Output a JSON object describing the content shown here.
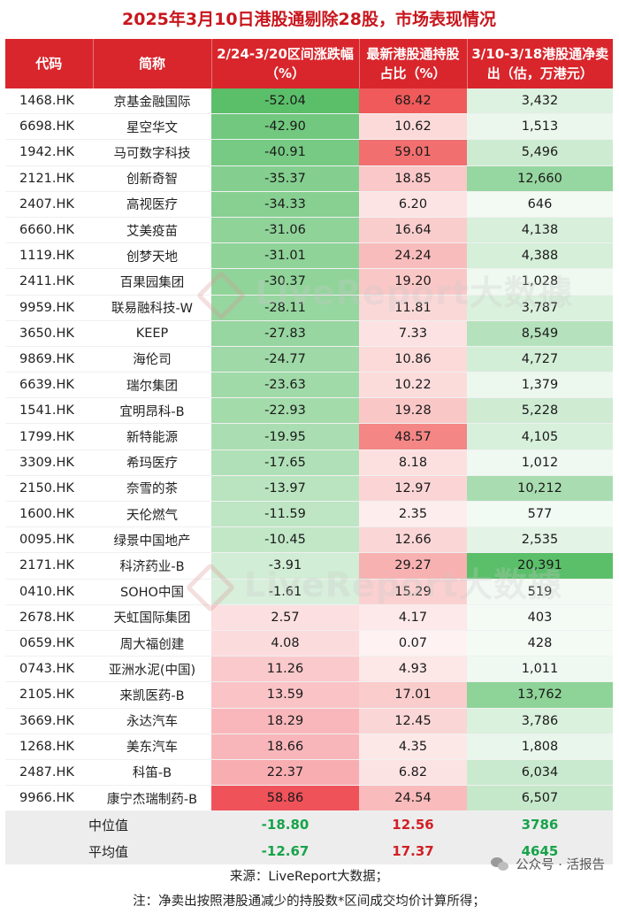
{
  "title": "2025年3月10日港股通剔除28股，市场表现情况",
  "headers": {
    "code": "代码",
    "name": "简称",
    "change": "2/24-3/20区间涨跌幅（%）",
    "holding": "最新港股通持股占比（%）",
    "net_sell": "3/10-3/18港股通净卖出（估，万港元）"
  },
  "rows": [
    {
      "code": "1468.HK",
      "name": "京基金融国际",
      "change": "-52.04",
      "holding": "68.42",
      "net_sell": "3,432"
    },
    {
      "code": "6698.HK",
      "name": "星空华文",
      "change": "-42.90",
      "holding": "10.62",
      "net_sell": "1,513"
    },
    {
      "code": "1942.HK",
      "name": "马可数字科技",
      "change": "-40.91",
      "holding": "59.01",
      "net_sell": "5,496"
    },
    {
      "code": "2121.HK",
      "name": "创新奇智",
      "change": "-35.37",
      "holding": "18.85",
      "net_sell": "12,660"
    },
    {
      "code": "2407.HK",
      "name": "高视医疗",
      "change": "-34.33",
      "holding": "6.20",
      "net_sell": "646"
    },
    {
      "code": "6660.HK",
      "name": "艾美疫苗",
      "change": "-31.06",
      "holding": "16.64",
      "net_sell": "4,138"
    },
    {
      "code": "1119.HK",
      "name": "创梦天地",
      "change": "-31.01",
      "holding": "24.24",
      "net_sell": "4,388"
    },
    {
      "code": "2411.HK",
      "name": "百果园集团",
      "change": "-30.37",
      "holding": "19.20",
      "net_sell": "1,028"
    },
    {
      "code": "9959.HK",
      "name": "联易融科技-W",
      "change": "-28.11",
      "holding": "11.81",
      "net_sell": "3,787"
    },
    {
      "code": "3650.HK",
      "name": "KEEP",
      "change": "-27.83",
      "holding": "7.33",
      "net_sell": "8,549"
    },
    {
      "code": "9869.HK",
      "name": "海伦司",
      "change": "-24.77",
      "holding": "10.86",
      "net_sell": "4,727"
    },
    {
      "code": "6639.HK",
      "name": "瑞尔集团",
      "change": "-23.63",
      "holding": "10.22",
      "net_sell": "1,379"
    },
    {
      "code": "1541.HK",
      "name": "宜明昂科-B",
      "change": "-22.93",
      "holding": "19.28",
      "net_sell": "5,228"
    },
    {
      "code": "1799.HK",
      "name": "新特能源",
      "change": "-19.95",
      "holding": "48.57",
      "net_sell": "4,105"
    },
    {
      "code": "3309.HK",
      "name": "希玛医疗",
      "change": "-17.65",
      "holding": "8.18",
      "net_sell": "1,012"
    },
    {
      "code": "2150.HK",
      "name": "奈雪的茶",
      "change": "-13.97",
      "holding": "12.97",
      "net_sell": "10,212"
    },
    {
      "code": "1600.HK",
      "name": "天伦燃气",
      "change": "-11.59",
      "holding": "2.35",
      "net_sell": "577"
    },
    {
      "code": "0095.HK",
      "name": "绿景中国地产",
      "change": "-10.45",
      "holding": "12.66",
      "net_sell": "2,535"
    },
    {
      "code": "2171.HK",
      "name": "科济药业-B",
      "change": "-3.91",
      "holding": "29.27",
      "net_sell": "20,391"
    },
    {
      "code": "0410.HK",
      "name": "SOHO中国",
      "change": "-1.61",
      "holding": "15.29",
      "net_sell": "519"
    },
    {
      "code": "2678.HK",
      "name": "天虹国际集团",
      "change": "2.57",
      "holding": "4.17",
      "net_sell": "403"
    },
    {
      "code": "0659.HK",
      "name": "周大福创建",
      "change": "4.08",
      "holding": "0.07",
      "net_sell": "428"
    },
    {
      "code": "0743.HK",
      "name": "亚洲水泥(中国)",
      "change": "11.26",
      "holding": "4.93",
      "net_sell": "1,011"
    },
    {
      "code": "2105.HK",
      "name": "来凯医药-B",
      "change": "13.59",
      "holding": "17.01",
      "net_sell": "13,762"
    },
    {
      "code": "3669.HK",
      "name": "永达汽车",
      "change": "18.29",
      "holding": "12.45",
      "net_sell": "3,786"
    },
    {
      "code": "1268.HK",
      "name": "美东汽车",
      "change": "18.66",
      "holding": "4.35",
      "net_sell": "1,808"
    },
    {
      "code": "2487.HK",
      "name": "科笛-B",
      "change": "22.37",
      "holding": "6.82",
      "net_sell": "6,034"
    },
    {
      "code": "9966.HK",
      "name": "康宁杰瑞制药-B",
      "change": "58.86",
      "holding": "24.54",
      "net_sell": "6,507"
    }
  ],
  "summary": [
    {
      "label": "中位值",
      "change": "-18.80",
      "holding": "12.56",
      "net_sell": "3786"
    },
    {
      "label": "平均值",
      "change": "-12.67",
      "holding": "17.37",
      "net_sell": "4645"
    }
  ],
  "notes": {
    "source": "来源：LiveReport大数据；",
    "remark": "注：净卖出按照港股通减少的持股数*区间成交均价计算所得；"
  },
  "watermark": "LiveReport大数據",
  "wechat_credit": "公众号 · 活报告",
  "colors": {
    "header_bg": "#d9262c",
    "title_text": "#c8161d",
    "negative_heat": "#5bbf6a",
    "positive_heat": "#f0525a",
    "holding_heat": "#f05a5a",
    "net_sell_heat": "#5bbf6a",
    "summary_bg": "#ededed"
  }
}
